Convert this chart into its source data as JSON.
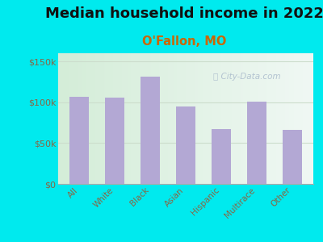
{
  "title": "Median household income in 2022",
  "subtitle": "O'Fallon, MO",
  "categories": [
    "All",
    "White",
    "Black",
    "Asian",
    "Hispanic",
    "Multirace",
    "Other"
  ],
  "values": [
    107000,
    106000,
    131000,
    95000,
    67000,
    101000,
    66000
  ],
  "bar_color": "#b3a8d4",
  "background_outer": "#00eaee",
  "title_fontsize": 13,
  "subtitle_fontsize": 10.5,
  "subtitle_color": "#cc6600",
  "tick_color": "#886644",
  "ytick_label_color": "#886644",
  "ylim": [
    0,
    160000
  ],
  "yticks": [
    0,
    50000,
    100000,
    150000
  ],
  "ytick_labels": [
    "$0",
    "$50k",
    "$100k",
    "$150k"
  ],
  "watermark": "City-Data.com",
  "watermark_color": "#aabbcc",
  "grid_color": "#ccddcc",
  "inner_gradient_left": "#d4edd8",
  "inner_gradient_right": "#f0f8f4"
}
